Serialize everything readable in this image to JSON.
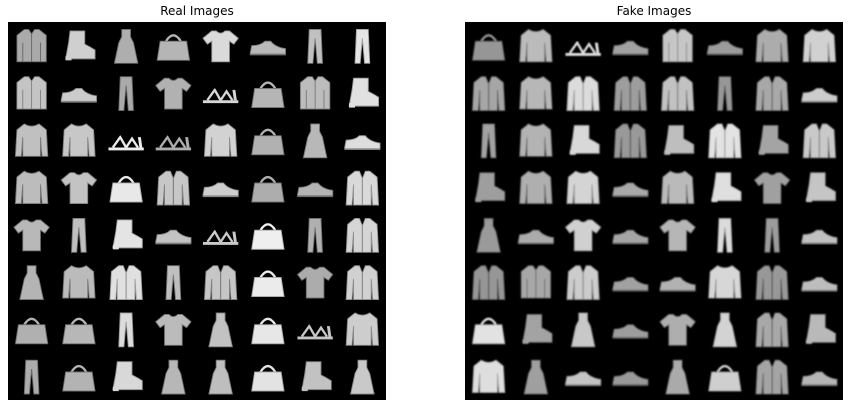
{
  "panels": [
    {
      "title": "Real Images",
      "grid": [
        [
          "shirt",
          "ankle-boot",
          "dress",
          "bag",
          "t-shirt",
          "sneaker",
          "trouser",
          "trouser"
        ],
        [
          "shirt",
          "sneaker",
          "trouser",
          "t-shirt",
          "sandal",
          "bag",
          "shirt",
          "ankle-boot"
        ],
        [
          "pullover",
          "pullover",
          "sandal",
          "sandal",
          "pullover",
          "bag",
          "dress",
          "sneaker"
        ],
        [
          "pullover",
          "t-shirt",
          "bag",
          "coat",
          "sneaker",
          "bag",
          "sneaker",
          "coat"
        ],
        [
          "t-shirt",
          "trouser",
          "ankle-boot",
          "sneaker",
          "sandal",
          "bag",
          "trouser",
          "coat"
        ],
        [
          "dress",
          "pullover",
          "coat",
          "trouser",
          "coat",
          "bag",
          "t-shirt",
          "coat"
        ],
        [
          "bag",
          "bag",
          "trouser",
          "t-shirt",
          "dress",
          "bag",
          "sandal",
          "pullover"
        ],
        [
          "trouser",
          "bag",
          "ankle-boot",
          "dress",
          "dress",
          "bag",
          "ankle-boot",
          "dress"
        ]
      ]
    },
    {
      "title": "Fake Images",
      "grid": [
        [
          "bag",
          "pullover",
          "sandal",
          "sneaker",
          "shirt",
          "sneaker",
          "pullover",
          "pullover"
        ],
        [
          "coat",
          "pullover",
          "coat",
          "coat",
          "coat",
          "trouser",
          "coat",
          "sneaker"
        ],
        [
          "trouser",
          "pullover",
          "ankle-boot",
          "coat",
          "ankle-boot",
          "coat",
          "ankle-boot",
          "coat"
        ],
        [
          "ankle-boot",
          "pullover",
          "pullover",
          "sneaker",
          "pullover",
          "ankle-boot",
          "t-shirt",
          "ankle-boot"
        ],
        [
          "dress",
          "sneaker",
          "t-shirt",
          "sneaker",
          "t-shirt",
          "trouser",
          "trouser",
          "sneaker"
        ],
        [
          "coat",
          "shirt",
          "coat",
          "sneaker",
          "sneaker",
          "pullover",
          "coat",
          "sneaker"
        ],
        [
          "bag",
          "ankle-boot",
          "dress",
          "sneaker",
          "t-shirt",
          "dress",
          "coat",
          "ankle-boot"
        ],
        [
          "pullover",
          "dress",
          "sneaker",
          "sneaker",
          "dress",
          "bag",
          "coat",
          "sneaker"
        ]
      ]
    }
  ]
}
